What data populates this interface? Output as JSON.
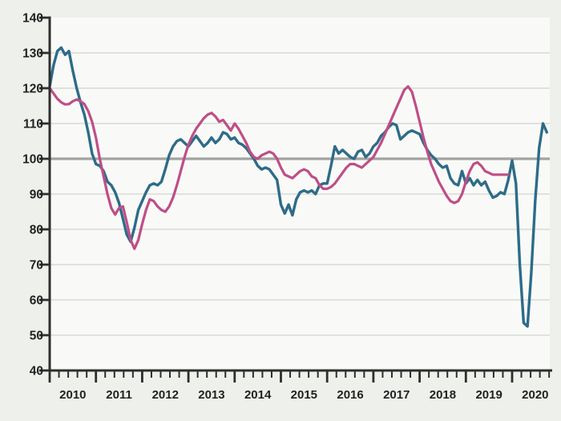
{
  "chart_data": {
    "type": "line",
    "title": "",
    "subtitle": "",
    "legend": "none",
    "x_axis": {
      "start": 2010,
      "end": 2021,
      "tick_labels": [
        "2010",
        "2011",
        "2012",
        "2013",
        "2014",
        "2015",
        "2016",
        "2017",
        "2018",
        "2019",
        "2020"
      ],
      "minor_ticks_per_year": 5
    },
    "y_axis": {
      "min": 40,
      "max": 140,
      "tick_step": 10,
      "tick_labels": [
        "40",
        "50",
        "60",
        "70",
        "80",
        "90",
        "100",
        "110",
        "120",
        "130",
        "140"
      ]
    },
    "grid": {
      "show": true,
      "color": "#d8dad6"
    },
    "reference_line": {
      "value": 100,
      "color": "#a3a4a1"
    },
    "colors": {
      "page_bg": "#eef0ec",
      "plot_bg": "#f9faf7",
      "axis": "#2e2e2e",
      "tick_label": "#222222"
    },
    "series": [
      {
        "name": "teal",
        "color": "#2e6b89",
        "width": 3.4,
        "x_start": 2010.0,
        "x_step": 0.0833333,
        "values": [
          120.5,
          126.5,
          130.5,
          131.5,
          129.5,
          130.5,
          125,
          120,
          116,
          112.5,
          107.5,
          101.5,
          98.5,
          98,
          96.5,
          93.5,
          92.5,
          90.5,
          87.5,
          83,
          78.5,
          76.5,
          80.5,
          85.5,
          88,
          90.5,
          92.5,
          93,
          92.5,
          93.5,
          97,
          101,
          103.5,
          105,
          105.5,
          104.5,
          103.5,
          105,
          106.5,
          105,
          103.5,
          104.5,
          106,
          104.5,
          105.5,
          107.5,
          107,
          105.5,
          106,
          104.5,
          104,
          103,
          101.5,
          100,
          98,
          97,
          97.5,
          97,
          95.5,
          94,
          87,
          84.5,
          87,
          84,
          88.5,
          90.5,
          91,
          90.5,
          91,
          90,
          92.5,
          93,
          93,
          98,
          103.5,
          101.5,
          102.5,
          101.5,
          100.5,
          100,
          102,
          102.5,
          100.5,
          101.5,
          103.5,
          104.5,
          106.5,
          107.5,
          109,
          110,
          109.5,
          105.5,
          106.5,
          107.5,
          108,
          107.5,
          107,
          104.5,
          102.5,
          101,
          100,
          98.5,
          97.5,
          98,
          94.5,
          93,
          92.5,
          96.5,
          93,
          94.5,
          92.5,
          94,
          92.5,
          93.5,
          91,
          89,
          89.5,
          90.5,
          90,
          94,
          99.5,
          93,
          70,
          53.5,
          52.5,
          68,
          88,
          103,
          110,
          107.5
        ]
      },
      {
        "name": "pink",
        "color": "#bf4e87",
        "width": 3.2,
        "x_start": 2010.0,
        "x_step": 0.0833333,
        "values": [
          120,
          118.5,
          117,
          116,
          115.4,
          115.5,
          116.3,
          116.8,
          116.3,
          115.5,
          113.5,
          110.5,
          106,
          100,
          95,
          90,
          86,
          84.2,
          86,
          86.5,
          82,
          77,
          74.5,
          77,
          81.5,
          85.5,
          88.5,
          88,
          86.5,
          85.5,
          85,
          86.5,
          89,
          92.5,
          96.5,
          100.5,
          104,
          106.5,
          108.5,
          110,
          111.5,
          112.5,
          113,
          112,
          110.5,
          111,
          109.5,
          108,
          110,
          108.5,
          106.5,
          104.5,
          102,
          100.5,
          100,
          101,
          101.5,
          102,
          101.5,
          100,
          97.5,
          95.5,
          95,
          94.5,
          95.5,
          96.5,
          97,
          96.5,
          95,
          94.5,
          92.5,
          91.5,
          91.5,
          92,
          93,
          94.5,
          96,
          97.5,
          98.5,
          98.5,
          98,
          97.5,
          98.5,
          99.5,
          100.5,
          102.5,
          104.5,
          107,
          109.5,
          112,
          114.5,
          117,
          119.5,
          120.5,
          119,
          115,
          110.5,
          106,
          102,
          98.5,
          96,
          93.5,
          91.5,
          89.5,
          88,
          87.5,
          88,
          90,
          93.5,
          96.5,
          98.5,
          99,
          98,
          96.5,
          96,
          95.5,
          95.5,
          95.5,
          95.5,
          95.5
        ]
      }
    ]
  }
}
